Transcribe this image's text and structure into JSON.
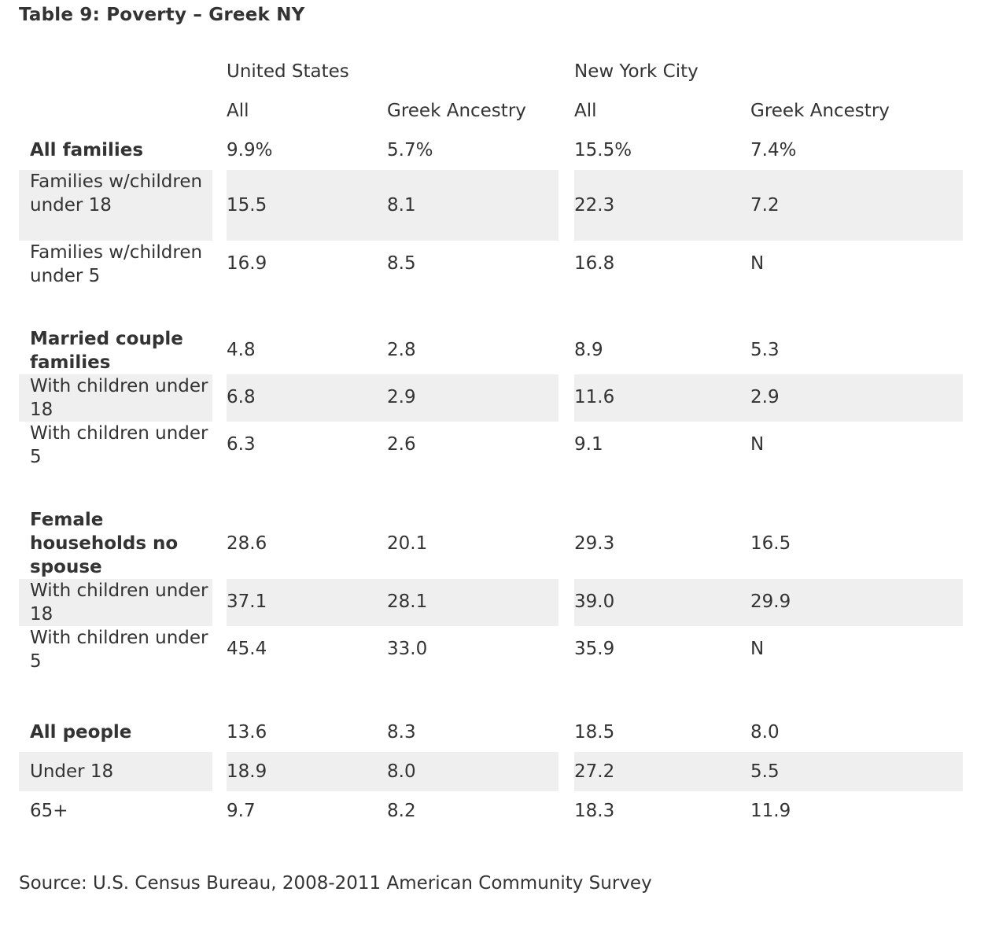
{
  "title": "Table 9: Poverty – Greek NY",
  "group_headers": [
    "United States",
    "New York City"
  ],
  "column_headers": [
    "All",
    "Greek Ancestry",
    "All",
    "Greek Ancestry"
  ],
  "rows": [
    {
      "label": "All families",
      "bold": true,
      "shaded": false,
      "values": [
        "9.9%",
        "5.7%",
        "15.5%",
        "7.4%"
      ]
    },
    {
      "label": "Families w/children under 18",
      "bold": false,
      "shaded": true,
      "values": [
        "15.5",
        "8.1",
        "22.3",
        "7.2"
      ]
    },
    {
      "label": "Families w/children under 5",
      "bold": false,
      "shaded": false,
      "values": [
        "16.9",
        "8.5",
        "16.8",
        "N"
      ]
    },
    {
      "label": "Married couple families",
      "bold": true,
      "shaded": false,
      "values": [
        "4.8",
        "2.8",
        "8.9",
        "5.3"
      ]
    },
    {
      "label": "With children under 18",
      "bold": false,
      "shaded": true,
      "values": [
        "6.8",
        "2.9",
        "11.6",
        "2.9"
      ]
    },
    {
      "label": "With children under 5",
      "bold": false,
      "shaded": false,
      "values": [
        "6.3",
        "2.6",
        "9.1",
        "N"
      ]
    },
    {
      "label": "Female households no spouse",
      "bold": true,
      "shaded": false,
      "values": [
        "28.6",
        "20.1",
        "29.3",
        "16.5"
      ]
    },
    {
      "label": "With children under 18",
      "bold": false,
      "shaded": true,
      "values": [
        "37.1",
        "28.1",
        "39.0",
        "29.9"
      ]
    },
    {
      "label": "With children under 5",
      "bold": false,
      "shaded": false,
      "values": [
        "45.4",
        "33.0",
        "35.9",
        "N"
      ]
    },
    {
      "label": "All people",
      "bold": true,
      "shaded": false,
      "values": [
        "13.6",
        "8.3",
        "18.5",
        "8.0"
      ]
    },
    {
      "label": "Under 18",
      "bold": false,
      "shaded": true,
      "values": [
        "18.9",
        "8.0",
        "27.2",
        "5.5"
      ]
    },
    {
      "label": "65+",
      "bold": false,
      "shaded": false,
      "values": [
        "9.7",
        "8.2",
        "18.3",
        "11.9"
      ]
    }
  ],
  "source": "Source: U.S. Census Bureau, 2008-2011 American Community Survey",
  "colors": {
    "text": "#333333",
    "row_shade": "#efefef",
    "background": "#ffffff"
  }
}
